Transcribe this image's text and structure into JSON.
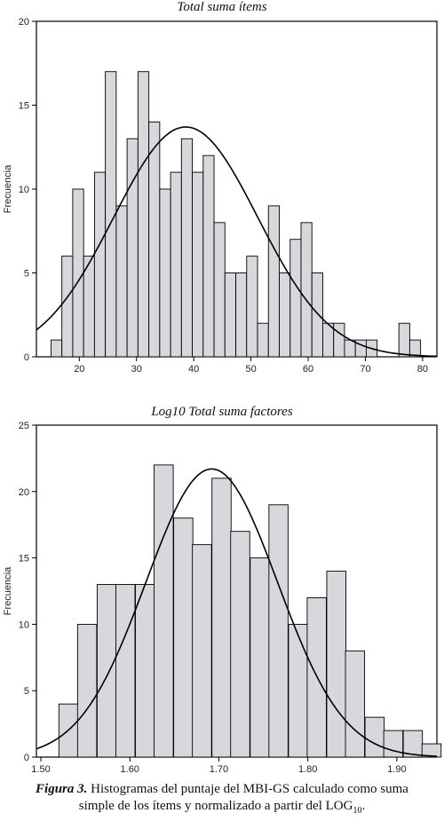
{
  "chart_data": [
    {
      "type": "bar",
      "title": "Total suma ítems",
      "xlabel": "",
      "ylabel": "Frecuencia",
      "xlim": [
        12.5,
        82.5
      ],
      "ylim": [
        0,
        20
      ],
      "x_ticks": [
        20,
        30,
        40,
        50,
        60,
        70,
        80
      ],
      "y_ticks": [
        0,
        5,
        10,
        15,
        20
      ],
      "bin_width": 1.9,
      "bins": [
        {
          "x": 16.0,
          "count": 1
        },
        {
          "x": 17.9,
          "count": 6
        },
        {
          "x": 19.8,
          "count": 10
        },
        {
          "x": 21.7,
          "count": 6
        },
        {
          "x": 23.6,
          "count": 11
        },
        {
          "x": 25.5,
          "count": 17
        },
        {
          "x": 27.4,
          "count": 9
        },
        {
          "x": 29.3,
          "count": 13
        },
        {
          "x": 31.2,
          "count": 17
        },
        {
          "x": 33.1,
          "count": 14
        },
        {
          "x": 35.0,
          "count": 10
        },
        {
          "x": 36.9,
          "count": 11
        },
        {
          "x": 38.8,
          "count": 13
        },
        {
          "x": 40.7,
          "count": 11
        },
        {
          "x": 42.6,
          "count": 12
        },
        {
          "x": 44.5,
          "count": 8
        },
        {
          "x": 46.4,
          "count": 5
        },
        {
          "x": 48.3,
          "count": 5
        },
        {
          "x": 50.2,
          "count": 6
        },
        {
          "x": 52.1,
          "count": 2
        },
        {
          "x": 54.0,
          "count": 9
        },
        {
          "x": 55.9,
          "count": 5
        },
        {
          "x": 57.8,
          "count": 7
        },
        {
          "x": 59.7,
          "count": 8
        },
        {
          "x": 61.6,
          "count": 5
        },
        {
          "x": 63.5,
          "count": 2
        },
        {
          "x": 65.4,
          "count": 2
        },
        {
          "x": 67.3,
          "count": 1
        },
        {
          "x": 69.2,
          "count": 1
        },
        {
          "x": 71.1,
          "count": 1
        },
        {
          "x": 76.8,
          "count": 2
        },
        {
          "x": 78.7,
          "count": 1
        }
      ],
      "normal_curve": {
        "mean": 38.6,
        "sd": 12.6,
        "peak": 13.7
      },
      "bar_color": "#d6d8dc",
      "grid": false
    },
    {
      "type": "bar",
      "title": "Log10 Total suma factores",
      "xlabel": "",
      "ylabel": "Frecuencia",
      "xlim": [
        1.495,
        1.945
      ],
      "ylim": [
        0,
        25
      ],
      "x_ticks": [
        "1.50",
        "1.60",
        "1.70",
        "1.80",
        "1.90"
      ],
      "y_ticks": [
        0,
        5,
        10,
        15,
        20,
        25
      ],
      "bin_width": 0.0215,
      "bins": [
        {
          "x": 1.531,
          "count": 4
        },
        {
          "x": 1.552,
          "count": 10
        },
        {
          "x": 1.574,
          "count": 13
        },
        {
          "x": 1.595,
          "count": 13
        },
        {
          "x": 1.617,
          "count": 13
        },
        {
          "x": 1.638,
          "count": 22
        },
        {
          "x": 1.66,
          "count": 18
        },
        {
          "x": 1.681,
          "count": 16
        },
        {
          "x": 1.703,
          "count": 21
        },
        {
          "x": 1.724,
          "count": 17
        },
        {
          "x": 1.746,
          "count": 15
        },
        {
          "x": 1.767,
          "count": 19
        },
        {
          "x": 1.789,
          "count": 10
        },
        {
          "x": 1.81,
          "count": 12
        },
        {
          "x": 1.832,
          "count": 14
        },
        {
          "x": 1.853,
          "count": 8
        },
        {
          "x": 1.875,
          "count": 3
        },
        {
          "x": 1.896,
          "count": 2
        },
        {
          "x": 1.918,
          "count": 2
        },
        {
          "x": 1.939,
          "count": 1
        }
      ],
      "normal_curve": {
        "mean": 1.692,
        "sd": 0.074,
        "peak": 21.7
      },
      "bar_color": "#d6d8dc",
      "grid": false
    }
  ],
  "caption": {
    "label": "Figura 3.",
    "line1_text": " Histogramas del puntaje del MBI-GS calculado como suma",
    "line2_text": "simple de los ítems y normalizado a partir del LOG",
    "subscript": "10",
    "end": "."
  }
}
